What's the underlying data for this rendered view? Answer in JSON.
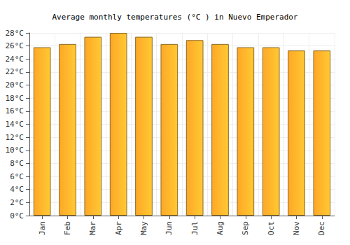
{
  "chart_data": {
    "type": "bar",
    "title": "Average monthly temperatures (°C ) in Nuevo Emperador",
    "categories": [
      "Jan",
      "Feb",
      "Mar",
      "Apr",
      "May",
      "Jun",
      "Jul",
      "Aug",
      "Sep",
      "Oct",
      "Nov",
      "Dec"
    ],
    "values": [
      25.8,
      26.3,
      27.4,
      28.0,
      27.4,
      26.3,
      26.9,
      26.3,
      25.8,
      25.8,
      25.3,
      25.3
    ],
    "color": "#ffa726",
    "ylim": [
      0,
      28
    ],
    "yticks": [
      {
        "value": 0,
        "label": "0°C"
      },
      {
        "value": 2,
        "label": "2°C"
      },
      {
        "value": 4,
        "label": "4°C"
      },
      {
        "value": 6,
        "label": "6°C"
      },
      {
        "value": 8,
        "label": "8°C"
      },
      {
        "value": 10,
        "label": "10°C"
      },
      {
        "value": 12,
        "label": "12°C"
      },
      {
        "value": 14,
        "label": "14°C"
      },
      {
        "value": 16,
        "label": "16°C"
      },
      {
        "value": 18,
        "label": "18°C"
      },
      {
        "value": 20,
        "label": "20°C"
      },
      {
        "value": 22,
        "label": "22°C"
      },
      {
        "value": 24,
        "label": "24°C"
      },
      {
        "value": 26,
        "label": "26°C"
      },
      {
        "value": 28,
        "label": "28°C"
      }
    ],
    "grid": true
  }
}
